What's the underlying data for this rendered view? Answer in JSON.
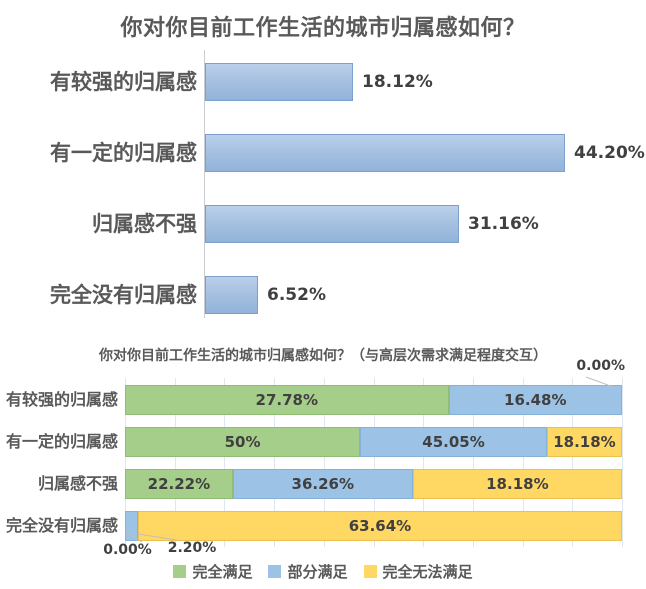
{
  "page": {
    "background": "#ffffff"
  },
  "top_chart": {
    "title": "你对你目前工作生活的城市归属感如何？",
    "bar_color": "#A6C1E1",
    "bar_border_color": "#7BA0CE",
    "rows": [
      {
        "category": "有较强的归属感",
        "value": 18.12,
        "label": "18.12%"
      },
      {
        "category": "有一定的归属感",
        "value": 44.2,
        "label": "44.20%"
      },
      {
        "category": "归属感不强",
        "value": 31.16,
        "label": "31.16%"
      },
      {
        "category": "完全没有归属感",
        "value": 6.52,
        "label": "6.52%"
      }
    ]
  },
  "bottom_chart": {
    "title": "你对你目前工作生活的城市归属感如何？（与高层次需求满足程度交互）",
    "legend": [
      {
        "name": "完全满足",
        "color": "#A5CE8B",
        "border": "#90BD74"
      },
      {
        "name": "部分满足",
        "color": "#9CC2E5",
        "border": "#85B2DB"
      },
      {
        "name": "完全无法满足",
        "color": "#FFD763",
        "border": "#EDC14F"
      }
    ],
    "rows": [
      {
        "category": "有较强的归属感",
        "segments": [
          {
            "series": "完全满足",
            "label": "27.78%",
            "width_pct": 65.1
          },
          {
            "series": "部分满足",
            "label": "16.48%",
            "width_pct": 34.9
          }
        ]
      },
      {
        "category": "有一定的归属感",
        "segments": [
          {
            "series": "完全满足",
            "label": "50%",
            "width_pct": 47.3
          },
          {
            "series": "部分满足",
            "label": "45.05%",
            "width_pct": 37.6
          },
          {
            "series": "完全无法满足",
            "label": "18.18%",
            "width_pct": 15.1
          }
        ]
      },
      {
        "category": "归属感不强",
        "segments": [
          {
            "series": "完全满足",
            "label": "22.22%",
            "width_pct": 21.7
          },
          {
            "series": "部分满足",
            "label": "36.26%",
            "width_pct": 36.2
          },
          {
            "series": "完全无法满足",
            "label": "18.18%",
            "width_pct": 42.1
          }
        ]
      },
      {
        "category": "完全没有归属感",
        "segments": [
          {
            "series": "部分满足",
            "label": "",
            "width_pct": 2.6
          },
          {
            "series": "完全无法满足",
            "label": "63.64%",
            "width_pct": 97.4
          }
        ]
      }
    ],
    "annotations": {
      "top_right_zero": "0.00%",
      "bottom_zero": "0.00%",
      "bottom_small": "2.20%"
    }
  },
  "chart_data": [
    {
      "type": "bar",
      "orientation": "horizontal",
      "title": "你对你目前工作生活的城市归属感如何？",
      "categories": [
        "有较强的归属感",
        "有一定的归属感",
        "归属感不强",
        "完全没有归属感"
      ],
      "values": [
        18.12,
        44.2,
        31.16,
        6.52
      ],
      "data_labels": [
        "18.12%",
        "44.20%",
        "31.16%",
        "6.52%"
      ],
      "unit": "%",
      "grid": false,
      "legend": false,
      "bar_color": "#A6C1E1"
    },
    {
      "type": "bar",
      "subtype": "stacked-100",
      "orientation": "horizontal",
      "title": "你对你目前工作生活的城市归属感如何？（与高层次需求满足程度交互）",
      "categories": [
        "有较强的归属感",
        "有一定的归属感",
        "归属感不强",
        "完全没有归属感"
      ],
      "series": [
        {
          "name": "完全满足",
          "color": "#A5CE8B",
          "values": [
            27.78,
            50.0,
            22.22,
            0.0
          ]
        },
        {
          "name": "部分满足",
          "color": "#9CC2E5",
          "values": [
            16.48,
            45.05,
            36.26,
            2.2
          ]
        },
        {
          "name": "完全无法满足",
          "color": "#FFD763",
          "values": [
            0.0,
            18.18,
            18.18,
            63.64
          ]
        }
      ],
      "unit": "%",
      "grid": true,
      "legend_position": "bottom",
      "annotations": [
        {
          "text": "0.00%",
          "refers_to": "完全无法满足 / 有较强的归属感",
          "position": "top-right"
        },
        {
          "text": "0.00%",
          "refers_to": "完全满足 / 完全没有归属感",
          "position": "bottom-left"
        },
        {
          "text": "2.20%",
          "refers_to": "部分满足 / 完全没有归属感",
          "position": "bottom-left"
        }
      ]
    }
  ]
}
